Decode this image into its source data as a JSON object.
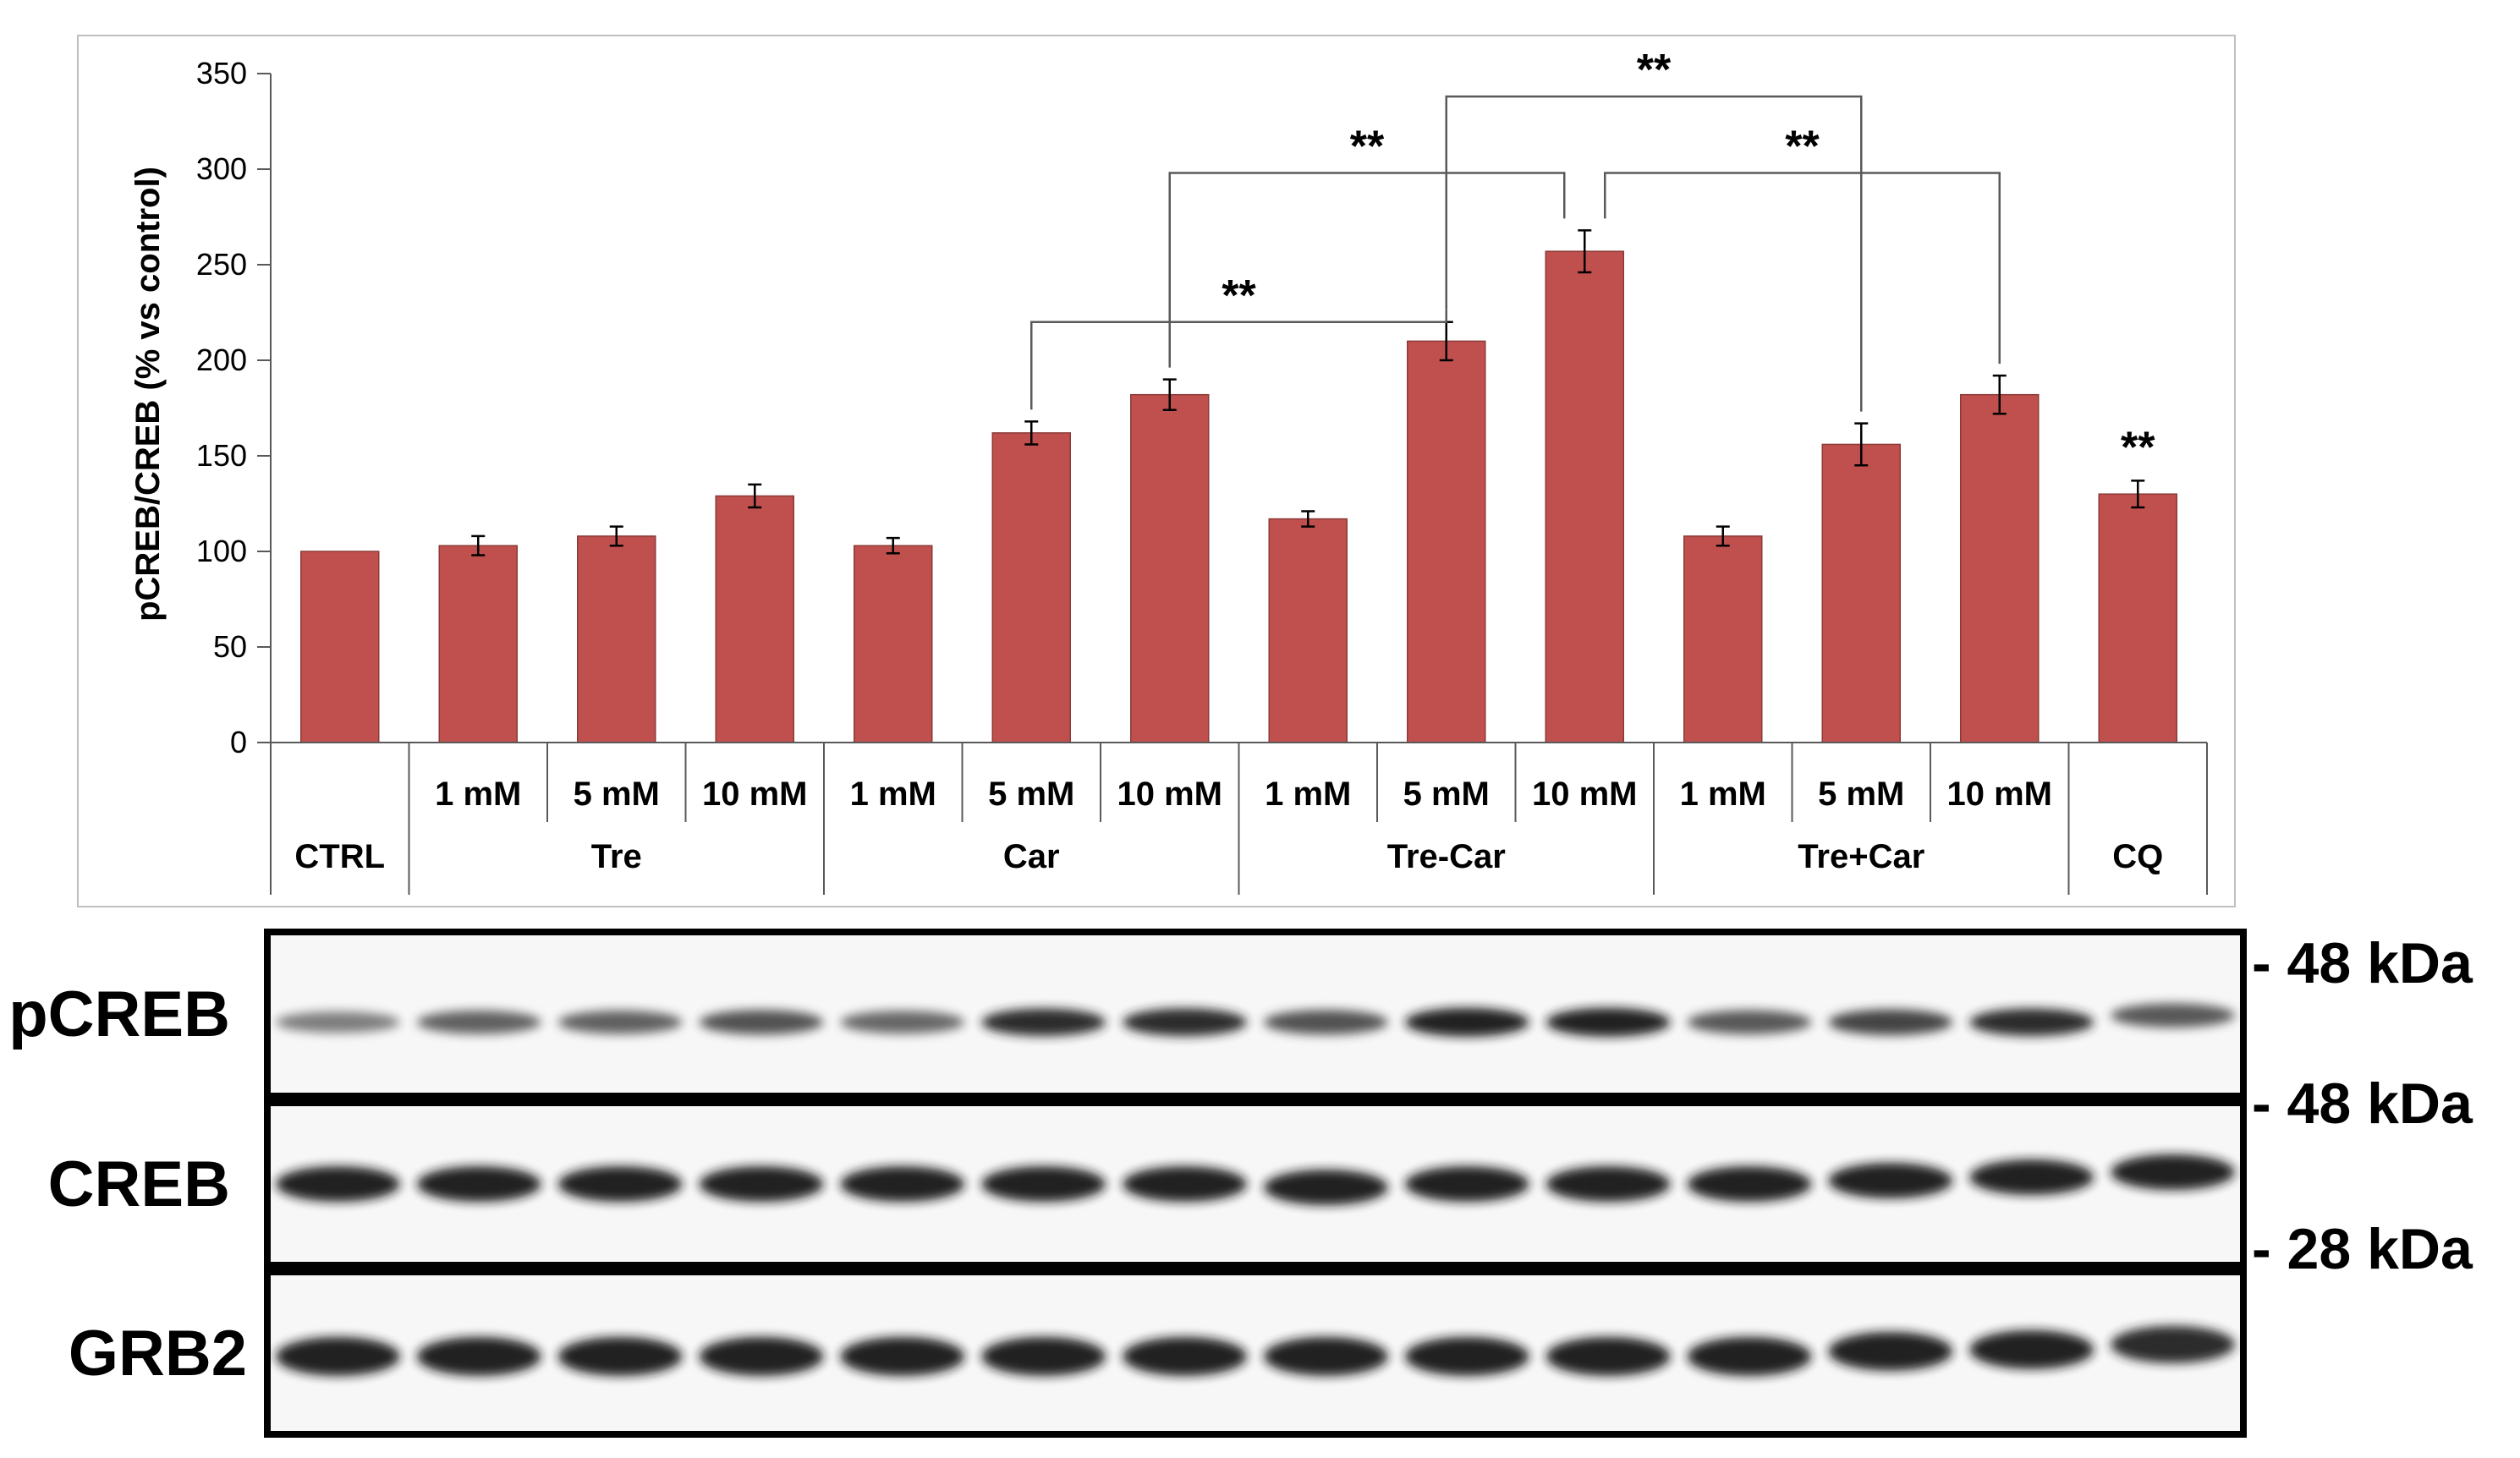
{
  "chart_data": {
    "type": "bar",
    "ylabel": "pCREB/CREB (% vs control)",
    "ylim": [
      0,
      350
    ],
    "yticks": [
      0,
      50,
      100,
      150,
      200,
      250,
      300,
      350
    ],
    "bar_color": "#c0504d",
    "dose_labels": [
      "",
      "1 mM",
      "5 mM",
      "10 mM",
      "1 mM",
      "5 mM",
      "10 mM",
      "1 mM",
      "5 mM",
      "10 mM",
      "1 mM",
      "5 mM",
      "10 mM",
      ""
    ],
    "values": [
      100,
      103,
      108,
      129,
      103,
      162,
      182,
      117,
      210,
      257,
      108,
      156,
      182,
      130
    ],
    "errors": [
      0,
      5,
      5,
      6,
      4,
      6,
      8,
      4,
      10,
      11,
      5,
      11,
      10,
      7
    ],
    "groups": [
      {
        "label": "CTRL",
        "start": 0,
        "end": 0
      },
      {
        "label": "Tre",
        "start": 1,
        "end": 3
      },
      {
        "label": "Car",
        "start": 4,
        "end": 6
      },
      {
        "label": "Tre-Car",
        "start": 7,
        "end": 9
      },
      {
        "label": "Tre+Car",
        "start": 10,
        "end": 12
      },
      {
        "label": "CQ",
        "start": 13,
        "end": 13
      }
    ],
    "significance": [
      {
        "from": 5,
        "to": 8,
        "level": 220,
        "label": "**"
      },
      {
        "from": 6,
        "to": 9,
        "level": 298,
        "label": "**"
      },
      {
        "from": 9,
        "to": 12,
        "level": 298,
        "label": "**"
      },
      {
        "from": 8,
        "to": 11,
        "level": 338,
        "label": "**"
      }
    ],
    "bar_annotations": [
      {
        "index": 13,
        "label": "**"
      }
    ]
  },
  "blot": {
    "rows": [
      {
        "protein": "pCREB",
        "marker": "- 48 kDa",
        "intensity": [
          0.35,
          0.55,
          0.55,
          0.65,
          0.5,
          0.9,
          0.92,
          0.65,
          1.0,
          1.0,
          0.6,
          0.75,
          0.9,
          0.6
        ]
      },
      {
        "protein": "CREB",
        "marker": "- 48 kDa",
        "intensity": [
          1,
          1,
          1,
          1,
          1,
          1,
          1,
          1,
          1,
          1,
          1,
          1,
          1,
          1
        ]
      },
      {
        "protein": "GRB2",
        "marker": "- 28 kDa",
        "intensity": [
          1,
          1,
          1,
          1,
          1,
          1,
          1,
          1,
          1,
          1,
          1,
          1,
          1,
          0.9
        ]
      }
    ]
  }
}
